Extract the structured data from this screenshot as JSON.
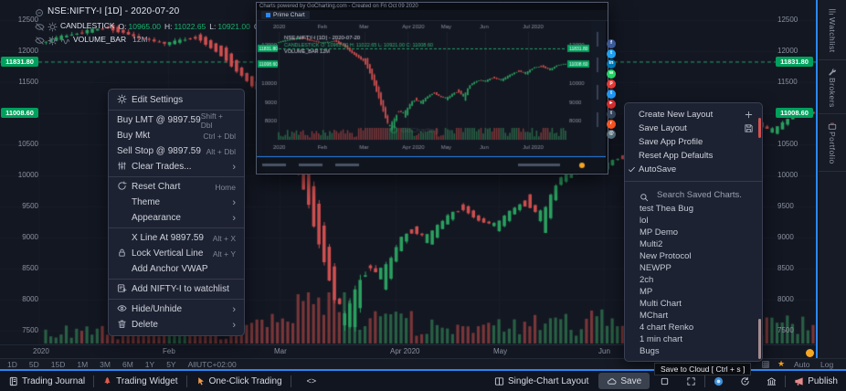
{
  "colors": {
    "up": "#2aa05f",
    "down": "#cf4f4f",
    "vol_up": "rgba(46,115,78,0.8)",
    "vol_down": "rgba(148,62,62,0.8)",
    "badge": "#00a15c",
    "accent": "#2b87f5",
    "level": "#27a169"
  },
  "header_legend": {
    "symbol_line": "NSE:NIFTY-I [1D] - 2020-07-20",
    "study": "CANDLESTICK",
    "ohlc": [
      {
        "k": "O:",
        "v": "10965.00"
      },
      {
        "k": "H:",
        "v": "11022.65"
      },
      {
        "k": "L:",
        "v": "10921.00"
      },
      {
        "k": "C:",
        "v": "11008.60"
      }
    ],
    "volume_study": "VOLUME_BAR",
    "volume_value": "12M"
  },
  "axis": {
    "price_ticks": [
      12500,
      12000,
      11500,
      11000,
      10500,
      10000,
      9500,
      9000,
      8500,
      8000,
      7500
    ],
    "price_badges": [
      {
        "label": "11831.80",
        "price": 11831.8,
        "dashed": true
      },
      {
        "label": "11008.60",
        "price": 11008.6,
        "dashed": false
      }
    ],
    "date_labels": [
      "2020",
      "Feb",
      "Mar",
      "Apr 2020",
      "May",
      "Jun"
    ],
    "timeframes": [
      "1D",
      "5D",
      "15D",
      "1M",
      "3M",
      "6M",
      "1Y",
      "5Y",
      "All"
    ],
    "timezone": "UTC+02:00",
    "scale_auto": "Auto",
    "scale_log": "Log"
  },
  "chart_data": {
    "type": "candlestick+volume",
    "symbol": "NSE:NIFTY-I",
    "interval": "1D",
    "last_date": "2020-07-20",
    "ohlc": {
      "open": 10965.0,
      "high": 11022.65,
      "low": 10921.0,
      "close": 11008.6
    },
    "volume": "12M",
    "levels": [
      11831.8,
      11008.6
    ],
    "y_range": [
      7500,
      12500
    ],
    "price_path_anchors": [
      [
        0,
        12150
      ],
      [
        0.04,
        12280
      ],
      [
        0.085,
        12390
      ],
      [
        0.12,
        12230
      ],
      [
        0.16,
        12120
      ],
      [
        0.2,
        12230
      ],
      [
        0.235,
        11950
      ],
      [
        0.26,
        11600
      ],
      [
        0.285,
        11350
      ],
      [
        0.31,
        11050
      ],
      [
        0.33,
        10300
      ],
      [
        0.355,
        9250
      ],
      [
        0.375,
        8300
      ],
      [
        0.39,
        7650
      ],
      [
        0.405,
        7900
      ],
      [
        0.42,
        8550
      ],
      [
        0.445,
        8350
      ],
      [
        0.46,
        8850
      ],
      [
        0.48,
        9150
      ],
      [
        0.5,
        8950
      ],
      [
        0.52,
        9250
      ],
      [
        0.545,
        9500
      ],
      [
        0.565,
        9300
      ],
      [
        0.59,
        9180
      ],
      [
        0.61,
        9420
      ],
      [
        0.63,
        9600
      ],
      [
        0.65,
        9250
      ],
      [
        0.67,
        9900
      ],
      [
        0.7,
        10150
      ],
      [
        0.725,
        10100
      ],
      [
        0.75,
        10300
      ],
      [
        0.78,
        10150
      ],
      [
        0.81,
        10420
      ],
      [
        0.84,
        10650
      ],
      [
        0.865,
        10500
      ],
      [
        0.89,
        10800
      ],
      [
        0.92,
        10900
      ],
      [
        0.95,
        10700
      ],
      [
        0.975,
        10950
      ],
      [
        1,
        11008
      ]
    ]
  },
  "context_menu": {
    "sections": [
      [
        {
          "icon": "gear",
          "label": "Edit Settings"
        }
      ],
      [
        {
          "label": "Buy LMT @ 9897.59",
          "shortcut": "Shift + Dbl",
          "flush": true
        },
        {
          "label": "Buy Mkt",
          "shortcut": "Ctrl + Dbl",
          "flush": true
        },
        {
          "label": "Sell Stop @ 9897.59",
          "shortcut": "Alt + Dbl",
          "flush": true
        },
        {
          "icon": "sliders",
          "label": "Clear Trades...",
          "submenu": true
        }
      ],
      [
        {
          "icon": "reset",
          "label": "Reset Chart",
          "shortcut": "Home"
        },
        {
          "label": "Theme",
          "submenu": true
        },
        {
          "label": "Appearance",
          "submenu": true
        }
      ],
      [
        {
          "label": "X Line At 9897.59",
          "shortcut": "Alt + X"
        },
        {
          "icon": "lock",
          "label": "Lock Vertical Line",
          "shortcut": "Alt + Y"
        },
        {
          "label": "Add Anchor VWAP"
        }
      ],
      [
        {
          "icon": "watchadd",
          "label": "Add NIFTY-I to watchlist"
        }
      ],
      [
        {
          "icon": "eye",
          "label": "Hide/Unhide",
          "submenu": true
        },
        {
          "icon": "trash",
          "label": "Delete",
          "submenu": true
        }
      ]
    ]
  },
  "layout_menu": {
    "items": [
      {
        "label": "Create New Layout",
        "right_icon": "plus"
      },
      {
        "label": "Save Layout",
        "right_icon": "save"
      },
      {
        "label": "Save App Profile"
      },
      {
        "label": "Reset App Defaults"
      },
      {
        "label": "AutoSave",
        "checked": true
      }
    ],
    "search_placeholder": "Search Saved Charts.",
    "saved_charts": [
      "test Thea Bug",
      "lol",
      "MP Demo",
      "Multi2",
      "New Protocol",
      "NEWPP",
      "2ch",
      "MP",
      "Multi Chart",
      "MChart",
      "4 chart Renko",
      "1 min chart",
      "Bugs"
    ]
  },
  "preview": {
    "credit": "Charts powered by GoCharting.com - Created on Fri Oct 09 2020",
    "tab": "Prime Chart",
    "watermark": "GoCharting",
    "months": [
      "2020",
      "Feb",
      "Mar",
      "Apr 2020",
      "May",
      "Jun",
      "Jul 2020"
    ],
    "mini_symbol": "NSE:NIFTY-I [1D] - 2020-07-20",
    "mini_legend": "CANDLESTICK O: 10965.00 H: 11022.65 L: 10921.00 C: 11008.60",
    "mini_volume": "VOLUME_BAR 12M",
    "mini_ticks": [
      12000,
      11000,
      10000,
      9000,
      8000
    ]
  },
  "share": {
    "icons": [
      {
        "name": "facebook",
        "color": "#3b5998",
        "glyph": "f"
      },
      {
        "name": "twitter",
        "color": "#1da1f2",
        "glyph": "t"
      },
      {
        "name": "linkedin",
        "color": "#0077b5",
        "glyph": "in"
      },
      {
        "name": "whatsapp",
        "color": "#25d366",
        "glyph": "w"
      },
      {
        "name": "pinterest",
        "color": "#e53935",
        "glyph": "p"
      },
      {
        "name": "telegram",
        "color": "#2196f3",
        "glyph": "t"
      },
      {
        "name": "youtube",
        "color": "#d32f2f",
        "glyph": "►"
      },
      {
        "name": "tumblr",
        "color": "#36465d",
        "glyph": "t"
      },
      {
        "name": "reddit",
        "color": "#ff5722",
        "glyph": "r"
      },
      {
        "name": "email",
        "color": "#546e7a",
        "glyph": "@"
      }
    ]
  },
  "sidebar": {
    "tabs": [
      {
        "icon": "watchlist",
        "label": "Watchlist"
      },
      {
        "icon": "wrench",
        "label": "Brokers"
      },
      {
        "icon": "portfolio",
        "label": "Portfolio"
      }
    ]
  },
  "tooltip": {
    "text": "Save to Cloud [ Ctrl + s ]"
  },
  "bottom_bar": {
    "left": [
      {
        "icon": "journal",
        "label": "Trading Journal"
      },
      {
        "icon": "rocket",
        "label": "Trading Widget",
        "color": "red"
      },
      {
        "icon": "pointer",
        "label": "One-Click Trading",
        "color": "orange"
      },
      {
        "code": "<>"
      }
    ],
    "right": [
      {
        "icon": "layout",
        "label": "Single-Chart Layout"
      },
      {
        "icon": "cloud",
        "label": "Save",
        "hot": true
      },
      {
        "icon": "square"
      },
      {
        "icon": "expand"
      },
      {
        "sep": true
      },
      {
        "icon": "camera"
      },
      {
        "icon": "sync"
      },
      {
        "icon": "bank"
      },
      {
        "sep": true
      },
      {
        "icon": "megaphone",
        "label": "Publish",
        "color": "pink"
      }
    ]
  }
}
